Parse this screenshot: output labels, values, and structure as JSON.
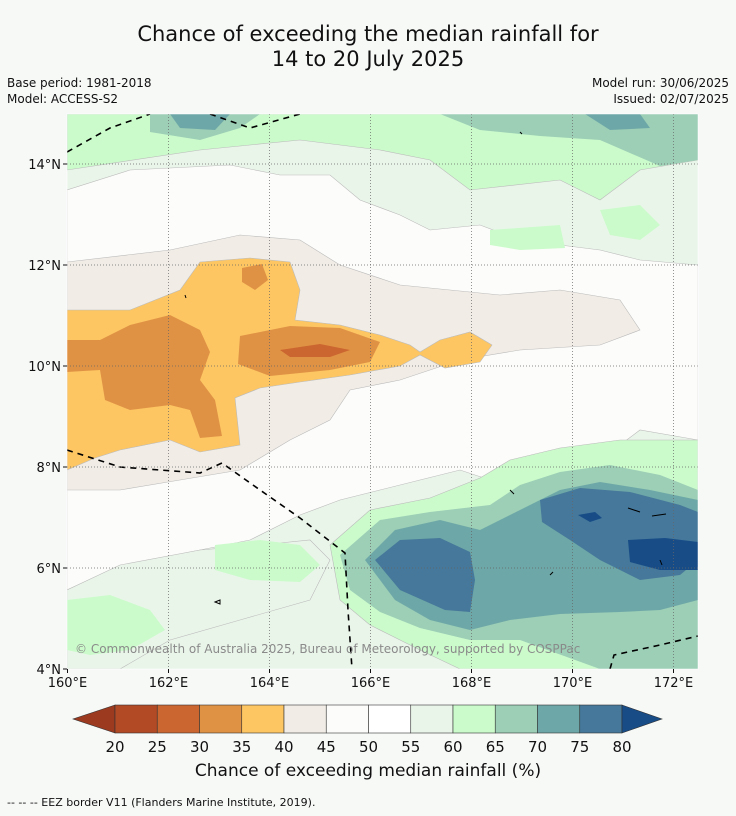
{
  "title_line1": "Chance of exceeding the median rainfall for",
  "title_line2": "14 to 20 July 2025",
  "base_period": "Base period: 1981-2018",
  "model": "Model: ACCESS-S2",
  "model_run": "Model run: 30/06/2025",
  "issued": "Issued: 02/07/2025",
  "copyright": "© Commonwealth of Australia 2025, Bureau of Meteorology, supported by COSPPac",
  "lon_ticks": [
    "160°E",
    "162°E",
    "164°E",
    "166°E",
    "168°E",
    "170°E",
    "172°E"
  ],
  "lat_ticks": [
    "14°N",
    "12°N",
    "10°N",
    "8°N",
    "6°N",
    "4°N"
  ],
  "colorbar": {
    "title": "Chance of exceeding median rainfall (%)",
    "ticks": [
      "20",
      "25",
      "30",
      "35",
      "40",
      "45",
      "50",
      "55",
      "60",
      "65",
      "70",
      "75",
      "80"
    ],
    "colors": [
      "#9b3a1f",
      "#b14a25",
      "#cb6630",
      "#e09244",
      "#fdc663",
      "#f1ece6",
      "#fcfcfa",
      "#ffffff",
      "#eaf5ea",
      "#cbfbcb",
      "#9ccfb6",
      "#6ea7a7",
      "#45789a",
      "#174c87"
    ]
  },
  "footnote": "--  --  -- EEZ border V11 (Flanders Marine Institute, 2019)."
}
